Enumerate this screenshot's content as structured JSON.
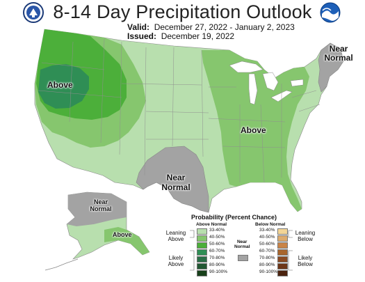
{
  "header": {
    "title": "8-14 Day Precipitation Outlook",
    "valid_label": "Valid:",
    "valid_value": "December 27, 2022 - January 2, 2023",
    "issued_label": "Issued:",
    "issued_value": "December 19, 2022"
  },
  "logos": {
    "left": "doc-seal-icon",
    "right": "noaa-logo-icon"
  },
  "map_labels": {
    "west": "Above",
    "east": "Above",
    "south_near": [
      "Near",
      "Normal"
    ],
    "northeast_near": [
      "Near",
      "Normal"
    ],
    "alaska_near": [
      "Near",
      "Normal"
    ],
    "alaska_above": "Above"
  },
  "legend": {
    "title": "Probability (Percent Chance)",
    "above_header": "Above Normal",
    "below_header": "Below Normal",
    "near_header": [
      "Near",
      "Normal"
    ],
    "above_items": [
      {
        "label": "33-40%",
        "color": "#b8dfae"
      },
      {
        "label": "40-50%",
        "color": "#86c66e"
      },
      {
        "label": "50-60%",
        "color": "#4caf3a"
      },
      {
        "label": "60-70%",
        "color": "#2f8e55"
      },
      {
        "label": "70-80%",
        "color": "#2a6e47"
      },
      {
        "label": "80-90%",
        "color": "#225833"
      },
      {
        "label": "90-100%",
        "color": "#17401a"
      }
    ],
    "below_items": [
      {
        "label": "33-40%",
        "color": "#f3d596"
      },
      {
        "label": "40-50%",
        "color": "#ddab6e"
      },
      {
        "label": "50-60%",
        "color": "#c98447"
      },
      {
        "label": "60-70%",
        "color": "#a8652c"
      },
      {
        "label": "70-80%",
        "color": "#8a4a22"
      },
      {
        "label": "80-90%",
        "color": "#6d3618"
      },
      {
        "label": "90-100%",
        "color": "#4c230f"
      }
    ],
    "near_color": "#a3a3a3",
    "leaning_above": [
      "Leaning",
      "Above"
    ],
    "likely_above": [
      "Likely",
      "Above"
    ],
    "leaning_below": [
      "Leaning",
      "Below"
    ],
    "likely_below": [
      "Likely",
      "Below"
    ]
  },
  "colors": {
    "lean": "#b8dfae",
    "moderate": "#86c66e",
    "strong": "#4caf3a",
    "very_strong": "#2f8e55",
    "near": "#a3a3a3",
    "water": "#ffffff",
    "border": "#888888"
  }
}
